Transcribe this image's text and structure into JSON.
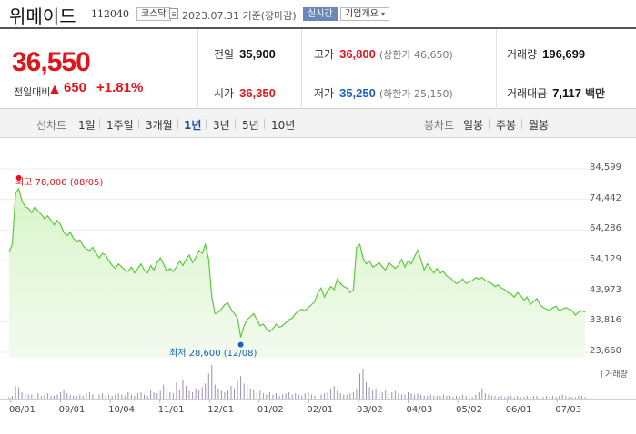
{
  "header": {
    "name": "위메이드",
    "code": "112040",
    "market": "코스닥",
    "date": "2023.07.31",
    "date_suffix": "기준(장마감)",
    "realtime_label": "실시간",
    "company_label": "기업개요"
  },
  "summary": {
    "price": "36,550",
    "compare_label": "전일대비",
    "change": "650",
    "change_pct": "+1.81%",
    "direction": "up",
    "prev_close_label": "전일",
    "prev_close": "35,900",
    "high_label": "고가",
    "high": "36,800",
    "upper_limit": "(상한가 46,650)",
    "volume_label": "거래량",
    "volume": "196,699",
    "open_label": "시가",
    "open": "36,350",
    "low_label": "저가",
    "low": "35,250",
    "lower_limit": "(하한가 25,150)",
    "amount_label": "거래대금",
    "amount": "7,117",
    "amount_unit": "백만"
  },
  "tabs": {
    "line_head": "선차트",
    "line": [
      "1일",
      "1주일",
      "3개월",
      "1년",
      "3년",
      "5년",
      "10년"
    ],
    "selected": "1년",
    "candle_head": "봉차트",
    "candle": [
      "일봉",
      "주봉",
      "월봉"
    ]
  },
  "chart": {
    "max_label": "최고 78,000 (08/05)",
    "min_label": "최저 28,600 (12/08)",
    "volume_label": "거래량",
    "colors": {
      "line": "#5cc93d",
      "fill_top": "#d8f5c9",
      "fill_bottom": "#f3fbef",
      "max_dot": "#e0151c",
      "min_dot": "#1861c4",
      "volume": "#9d8fb3"
    }
  },
  "chart_data": {
    "type": "area",
    "y_ticks": [
      "84,599",
      "74,442",
      "64,286",
      "54,129",
      "43,973",
      "33,816",
      "23,660"
    ],
    "ylim": [
      23660,
      84599
    ],
    "x_ticks": [
      "08/01",
      "09/01",
      "10/04",
      "11/01",
      "12/01",
      "01/02",
      "02/01",
      "03/02",
      "04/03",
      "05/02",
      "06/01",
      "07/03"
    ],
    "values": [
      57000,
      59500,
      76500,
      78000,
      74000,
      72000,
      71500,
      70000,
      72000,
      70500,
      69500,
      68000,
      69000,
      67500,
      66000,
      67500,
      66000,
      63500,
      62500,
      63500,
      61500,
      60500,
      61000,
      59000,
      58000,
      57500,
      58500,
      56500,
      55000,
      56500,
      56000,
      54000,
      52500,
      51500,
      53000,
      52000,
      51000,
      50500,
      52000,
      50000,
      51500,
      53000,
      51000,
      50000,
      52500,
      51000,
      53500,
      55000,
      53000,
      50500,
      51500,
      50500,
      52000,
      54000,
      52500,
      54500,
      56000,
      53500,
      55000,
      57500,
      56500,
      59500,
      54500,
      42000,
      36500,
      37000,
      38000,
      39500,
      40000,
      38000,
      36500,
      35000,
      28600,
      32500,
      34500,
      35500,
      36500,
      34500,
      32500,
      33000,
      31500,
      30500,
      31500,
      33000,
      32000,
      32500,
      33500,
      34500,
      35000,
      36500,
      37500,
      38000,
      37500,
      38500,
      39500,
      40500,
      43500,
      45000,
      42000,
      44000,
      45500,
      44500,
      48000,
      46500,
      45500,
      45000,
      43500,
      44500,
      58500,
      59500,
      55000,
      53000,
      54000,
      52000,
      52500,
      53500,
      52000,
      51000,
      53500,
      52500,
      51500,
      52500,
      54500,
      52000,
      54000,
      53000,
      55500,
      57500,
      54500,
      51000,
      53000,
      51500,
      50000,
      51500,
      50000,
      50500,
      49000,
      48500,
      47500,
      46500,
      47000,
      48000,
      46500,
      47000,
      47500,
      48500,
      48000,
      48500,
      47500,
      47000,
      46500,
      45500,
      46000,
      45000,
      44500,
      43500,
      43000,
      42000,
      43500,
      42500,
      41000,
      42000,
      39500,
      40500,
      41500,
      39500,
      38500,
      38000,
      37500,
      38500,
      39000,
      37500,
      38000,
      38500,
      38000,
      37500,
      36000,
      37000,
      37500,
      37000
    ],
    "volume": [
      2,
      3,
      11,
      10,
      6,
      5,
      4,
      4,
      3,
      5,
      3,
      4,
      5,
      3,
      3,
      4,
      6,
      8,
      5,
      4,
      3,
      3,
      4,
      3,
      5,
      6,
      4,
      3,
      4,
      5,
      3,
      4,
      3,
      4,
      5,
      4,
      3,
      6,
      4,
      3,
      5,
      6,
      4,
      3,
      8,
      6,
      5,
      7,
      12,
      9,
      6,
      5,
      14,
      8,
      16,
      11,
      7,
      6,
      9,
      8,
      10,
      13,
      21,
      28,
      12,
      9,
      7,
      6,
      8,
      11,
      9,
      15,
      19,
      13,
      12,
      9,
      8,
      6,
      7,
      5,
      4,
      6,
      4,
      5,
      3,
      4,
      5,
      6,
      4,
      5,
      4,
      3,
      5,
      6,
      4,
      3,
      5,
      4,
      5,
      6,
      9,
      11,
      7,
      5,
      4,
      4,
      5,
      6,
      9,
      21,
      25,
      14,
      10,
      8,
      9,
      7,
      6,
      8,
      5,
      6,
      7,
      5,
      4,
      4,
      6,
      5,
      4,
      5,
      4,
      3,
      3,
      4,
      3,
      3,
      3,
      4,
      3,
      3,
      2,
      3,
      3,
      4,
      3,
      3,
      2,
      4,
      6,
      9,
      5,
      4,
      3,
      3,
      2,
      3,
      2,
      3,
      3,
      2,
      3,
      2,
      2,
      3,
      2,
      3,
      3,
      2,
      2,
      3,
      2,
      3,
      2,
      3,
      4,
      3,
      2,
      2,
      2,
      3,
      3,
      2
    ]
  }
}
